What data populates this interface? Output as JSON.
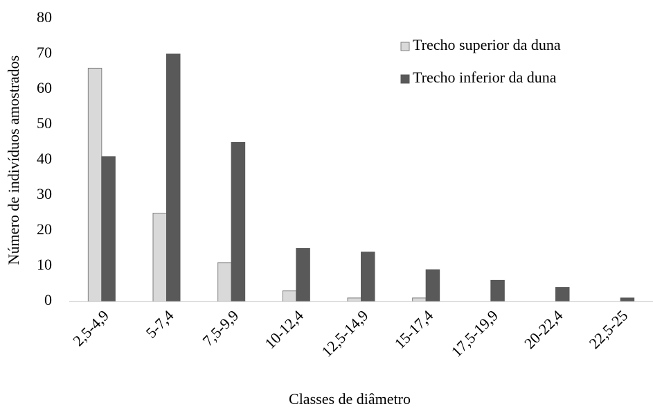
{
  "chart_data": {
    "type": "bar",
    "x_label": "Classes de diâmetro",
    "y_label": "Número de indivíduos amostrados",
    "categories": [
      "2,5-4,9",
      "5-7,4",
      "7,5-9,9",
      "10-12,4",
      "12,5-14,9",
      "15-17,4",
      "17,5-19,9",
      "20-22,4",
      "22,5-25"
    ],
    "series": [
      {
        "name": "Trecho superior da duna",
        "color": "#d9d9d9",
        "values": [
          66,
          25,
          11,
          3,
          1,
          1,
          0,
          0,
          0
        ]
      },
      {
        "name": "Trecho inferior da duna",
        "color": "#595959",
        "values": [
          41,
          70,
          45,
          15,
          14,
          9,
          6,
          4,
          1
        ]
      }
    ],
    "ylim": [
      0,
      80
    ],
    "yticks": [
      0,
      10,
      20,
      30,
      40,
      50,
      60,
      70,
      80
    ],
    "grid": false,
    "legend": "upper right"
  }
}
